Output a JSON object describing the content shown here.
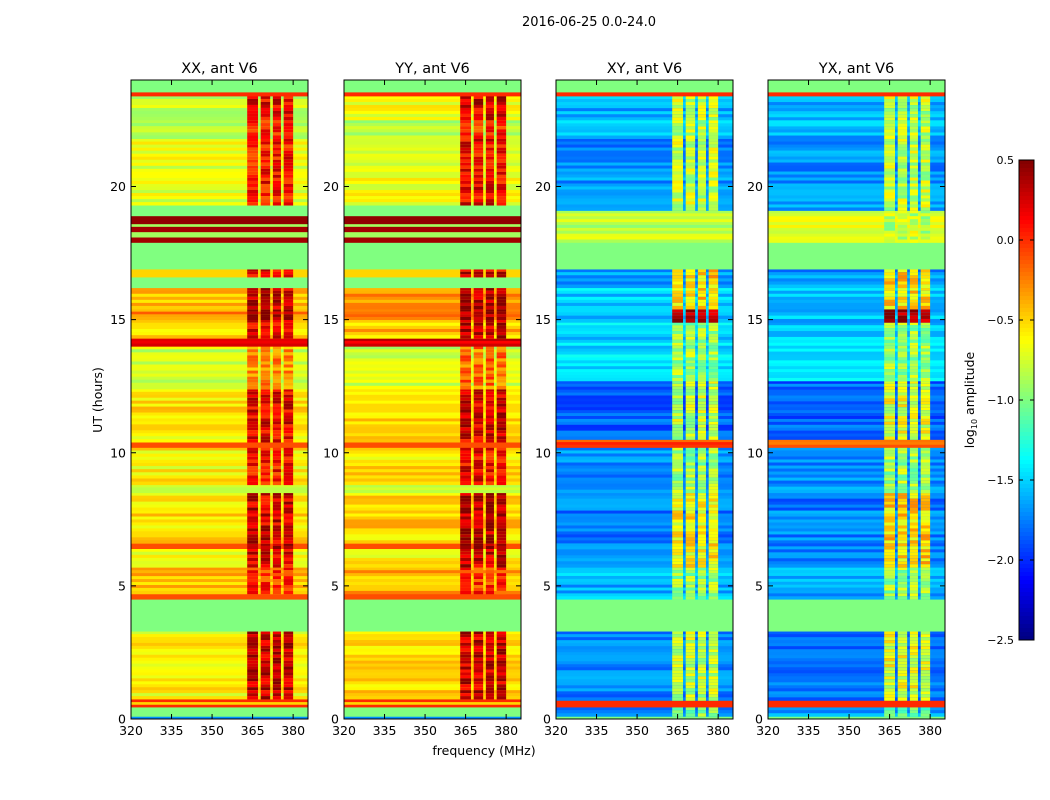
{
  "suptitle": "2016-06-25 0.0-24.0",
  "shared": {
    "xlabel": "frequency (MHz)",
    "ylabel": "UT (hours)",
    "xlim": [
      320,
      385.5
    ],
    "ylim": [
      0,
      24
    ],
    "xticks": [
      320,
      335,
      350,
      365,
      380
    ],
    "yticks": [
      0,
      5,
      10,
      15,
      20
    ],
    "rfi_columns_mhz": [
      [
        363,
        367
      ],
      [
        368,
        371.5
      ],
      [
        372.5,
        375.5
      ],
      [
        376.5,
        380
      ]
    ]
  },
  "chart_data": [
    {
      "type": "heatmap",
      "title": "XX, ant V6",
      "bands_note": "each band: [UT start, UT end, log10 amplitude outside RFI, log10 amplitude in RFI columns]",
      "bands": [
        [
          0,
          0.1,
          -1.7,
          -1.7
        ],
        [
          0.1,
          0.45,
          -1.0,
          -1.0
        ],
        [
          0.45,
          0.55,
          0.0,
          0.0
        ],
        [
          0.55,
          0.65,
          -0.5,
          -0.5
        ],
        [
          0.65,
          0.75,
          0.0,
          0.0
        ],
        [
          0.75,
          3.3,
          -0.6,
          0.3
        ],
        [
          3.3,
          4.5,
          -1.0,
          -1.0
        ],
        [
          4.5,
          4.7,
          -0.1,
          -0.1
        ],
        [
          4.7,
          5.7,
          -0.45,
          0.0
        ],
        [
          5.7,
          6.4,
          -0.7,
          0.2
        ],
        [
          6.4,
          6.6,
          -0.1,
          0.4
        ],
        [
          6.6,
          8.5,
          -0.55,
          0.25
        ],
        [
          8.5,
          8.8,
          -0.9,
          -0.9
        ],
        [
          8.8,
          10.2,
          -0.6,
          0.1
        ],
        [
          10.2,
          10.4,
          -0.1,
          -0.1
        ],
        [
          10.4,
          12.4,
          -0.55,
          0.2
        ],
        [
          12.4,
          14,
          -0.8,
          -0.3
        ],
        [
          14,
          14.3,
          0.3,
          0.3
        ],
        [
          14.3,
          15,
          -0.5,
          0.2
        ],
        [
          15,
          15.4,
          -0.3,
          0.45
        ],
        [
          15.4,
          16.2,
          -0.4,
          0.3
        ],
        [
          16.2,
          16.6,
          -1.0,
          -1.0
        ],
        [
          16.6,
          16.9,
          -0.5,
          0.2
        ],
        [
          16.9,
          17.9,
          -1.0,
          -1.0
        ],
        [
          17.9,
          18.1,
          0.4,
          0.4
        ],
        [
          18.1,
          18.3,
          -0.9,
          -0.9
        ],
        [
          18.3,
          18.5,
          0.4,
          0.4
        ],
        [
          18.5,
          18.6,
          -0.9,
          -0.9
        ],
        [
          18.6,
          18.9,
          0.45,
          0.45
        ],
        [
          18.9,
          19.3,
          -1.0,
          -1.0
        ],
        [
          19.3,
          21.8,
          -0.7,
          0.1
        ],
        [
          21.8,
          22.5,
          -0.9,
          0.0
        ],
        [
          22.5,
          23.4,
          -0.75,
          0.2
        ],
        [
          23.4,
          23.55,
          0.0,
          0.0
        ],
        [
          23.55,
          24,
          -1.0,
          -1.0
        ]
      ]
    },
    {
      "type": "heatmap",
      "title": "YY, ant V6",
      "bands": [
        [
          0,
          0.1,
          -1.7,
          -1.7
        ],
        [
          0.1,
          0.45,
          -1.0,
          -1.0
        ],
        [
          0.45,
          0.55,
          0.0,
          0.0
        ],
        [
          0.55,
          0.65,
          -0.5,
          -0.5
        ],
        [
          0.65,
          0.75,
          0.0,
          0.0
        ],
        [
          0.75,
          3.3,
          -0.5,
          0.3
        ],
        [
          3.3,
          4.5,
          -1.0,
          -1.0
        ],
        [
          4.5,
          4.7,
          -0.1,
          -0.1
        ],
        [
          4.7,
          5.7,
          -0.4,
          0.0
        ],
        [
          5.7,
          6.4,
          -0.6,
          0.3
        ],
        [
          6.4,
          6.6,
          -0.1,
          0.45
        ],
        [
          6.6,
          8.5,
          -0.5,
          0.35
        ],
        [
          8.5,
          8.8,
          -0.9,
          -0.9
        ],
        [
          8.8,
          10.2,
          -0.55,
          0.15
        ],
        [
          10.2,
          10.4,
          -0.1,
          -0.1
        ],
        [
          10.4,
          12.4,
          -0.5,
          0.25
        ],
        [
          12.4,
          14,
          -0.75,
          -0.2
        ],
        [
          14,
          14.3,
          0.3,
          0.3
        ],
        [
          14.3,
          15,
          -0.45,
          0.3
        ],
        [
          15,
          15.4,
          -0.3,
          0.45
        ],
        [
          15.4,
          16.2,
          -0.35,
          0.35
        ],
        [
          16.2,
          16.6,
          -1.0,
          -1.0
        ],
        [
          16.6,
          16.9,
          -0.5,
          0.25
        ],
        [
          16.9,
          17.9,
          -1.0,
          -1.0
        ],
        [
          17.9,
          18.1,
          0.4,
          0.4
        ],
        [
          18.1,
          18.3,
          -0.9,
          -0.9
        ],
        [
          18.3,
          18.5,
          0.4,
          0.4
        ],
        [
          18.5,
          18.6,
          -0.9,
          -0.9
        ],
        [
          18.6,
          18.9,
          0.45,
          0.45
        ],
        [
          18.9,
          19.3,
          -1.0,
          -1.0
        ],
        [
          19.3,
          21.8,
          -0.65,
          0.15
        ],
        [
          21.8,
          22.5,
          -0.85,
          0.05
        ],
        [
          22.5,
          23.4,
          -0.7,
          0.25
        ],
        [
          23.4,
          23.55,
          0.0,
          0.0
        ],
        [
          23.55,
          24,
          -1.0,
          -1.0
        ]
      ]
    },
    {
      "type": "heatmap",
      "title": "XY, ant V6",
      "bands": [
        [
          0,
          0.1,
          -1.0,
          -1.0
        ],
        [
          0.1,
          0.45,
          -1.7,
          -1.0
        ],
        [
          0.45,
          0.7,
          0.0,
          0.0
        ],
        [
          0.7,
          3.3,
          -1.75,
          -0.8
        ],
        [
          3.3,
          4.5,
          -1.0,
          -1.0
        ],
        [
          4.5,
          5.7,
          -1.6,
          -0.9
        ],
        [
          5.7,
          8.5,
          -1.75,
          -0.6
        ],
        [
          8.5,
          10.2,
          -1.7,
          -0.9
        ],
        [
          10.2,
          10.5,
          -0.1,
          -0.1
        ],
        [
          10.5,
          12.7,
          -1.85,
          -0.8
        ],
        [
          12.7,
          14.9,
          -1.5,
          -0.9
        ],
        [
          14.9,
          15.4,
          -1.6,
          0.4
        ],
        [
          15.4,
          16.2,
          -1.5,
          -0.5
        ],
        [
          16.2,
          16.9,
          -1.7,
          -0.5
        ],
        [
          16.9,
          17.9,
          -1.0,
          -1.0
        ],
        [
          17.9,
          19.1,
          -0.8,
          -0.8
        ],
        [
          19.1,
          21.8,
          -1.7,
          -0.8
        ],
        [
          21.8,
          23.4,
          -1.6,
          -0.8
        ],
        [
          23.4,
          23.55,
          0.0,
          0.0
        ],
        [
          23.55,
          24,
          -1.0,
          -1.0
        ]
      ]
    },
    {
      "type": "heatmap",
      "title": "YX, ant V6",
      "bands": [
        [
          0,
          0.1,
          -1.0,
          -1.0
        ],
        [
          0.1,
          0.45,
          -1.7,
          -1.0
        ],
        [
          0.45,
          0.7,
          0.0,
          0.0
        ],
        [
          0.7,
          3.3,
          -1.75,
          -0.7
        ],
        [
          3.3,
          4.5,
          -1.0,
          -1.0
        ],
        [
          4.5,
          5.7,
          -1.6,
          -0.9
        ],
        [
          5.7,
          8.5,
          -1.75,
          -0.5
        ],
        [
          8.5,
          10.2,
          -1.7,
          -0.9
        ],
        [
          10.2,
          10.5,
          -0.1,
          -0.1
        ],
        [
          10.5,
          12.7,
          -1.85,
          -0.7
        ],
        [
          12.7,
          14.9,
          -1.5,
          -0.9
        ],
        [
          14.9,
          15.4,
          -1.6,
          0.4
        ],
        [
          15.4,
          16.2,
          -1.5,
          -0.5
        ],
        [
          16.2,
          16.9,
          -1.7,
          -0.5
        ],
        [
          16.9,
          17.9,
          -1.0,
          -1.0
        ],
        [
          17.9,
          19.1,
          -0.75,
          -0.8
        ],
        [
          19.1,
          21.8,
          -1.7,
          -0.8
        ],
        [
          21.8,
          23.4,
          -1.6,
          -0.8
        ],
        [
          23.4,
          23.55,
          0.0,
          0.0
        ],
        [
          23.55,
          24,
          -1.0,
          -1.0
        ]
      ]
    }
  ],
  "colorbar": {
    "label_main": "log",
    "label_sub": "10",
    "label_rest": " amplitude",
    "range": [
      -2.5,
      0.5
    ],
    "ticks": [
      0.5,
      0.0,
      -0.5,
      -1.0,
      -1.5,
      -2.0,
      -2.5
    ],
    "tick_labels": [
      "0.5",
      "0.0",
      "−0.5",
      "−1.0",
      "−1.5",
      "−2.0",
      "−2.5"
    ],
    "colormap": "jet"
  }
}
